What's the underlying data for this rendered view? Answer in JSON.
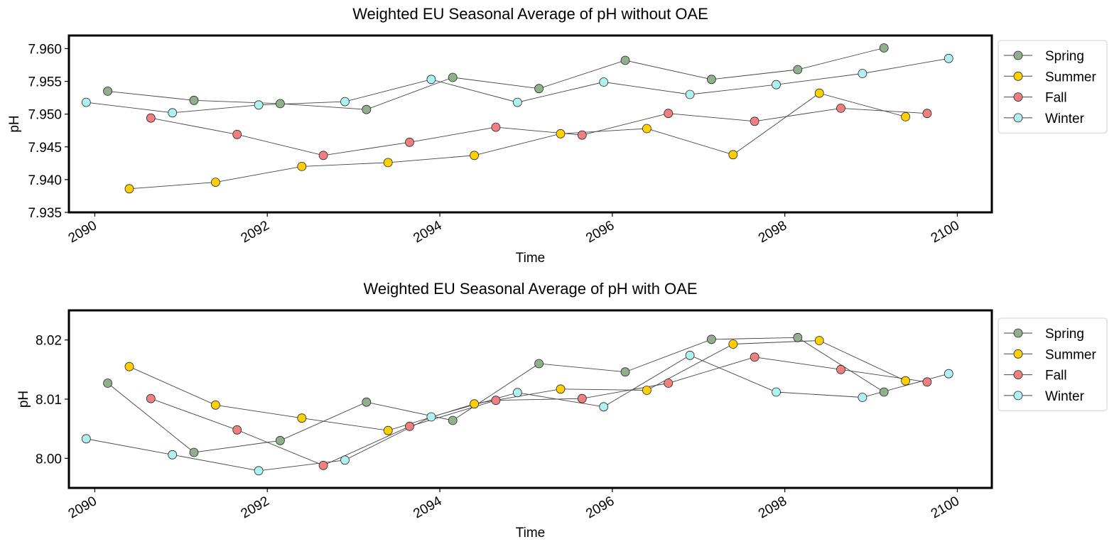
{
  "chart_data": [
    {
      "type": "line",
      "title": "Weighted EU Seasonal Average of pH without OAE",
      "xlabel": "Time",
      "ylabel": "pH",
      "xlim": [
        2089.7,
        2100.4
      ],
      "ylim": [
        7.935,
        7.962
      ],
      "x_ticks": [
        2090,
        2092,
        2094,
        2096,
        2098,
        2100
      ],
      "y_ticks": [
        7.935,
        7.94,
        7.945,
        7.95,
        7.955,
        7.96
      ],
      "y_tick_labels": [
        "7.935",
        "7.940",
        "7.945",
        "7.950",
        "7.955",
        "7.960"
      ],
      "legend": "outside-right-top",
      "series": [
        {
          "name": "Spring",
          "color": "#8fb08b",
          "x": [
            2090.15,
            2091.15,
            2092.15,
            2093.15,
            2094.15,
            2095.15,
            2096.15,
            2097.15,
            2098.15,
            2099.15
          ],
          "y": [
            7.9535,
            7.9521,
            7.9516,
            7.9507,
            7.9556,
            7.9539,
            7.9582,
            7.9553,
            7.9568,
            7.9601
          ]
        },
        {
          "name": "Summer",
          "color": "#ffd000",
          "x": [
            2090.4,
            2091.4,
            2092.4,
            2093.4,
            2094.4,
            2095.4,
            2096.4,
            2097.4,
            2098.4,
            2099.4
          ],
          "y": [
            7.9386,
            7.9396,
            7.942,
            7.9426,
            7.9437,
            7.947,
            7.9478,
            7.9438,
            7.9532,
            7.9496
          ]
        },
        {
          "name": "Fall",
          "color": "#f08080",
          "x": [
            2090.65,
            2091.65,
            2092.65,
            2093.65,
            2094.65,
            2095.65,
            2096.65,
            2097.65,
            2098.65,
            2099.65
          ],
          "y": [
            7.9494,
            7.9469,
            7.9437,
            7.9457,
            7.948,
            7.9468,
            7.9501,
            7.9489,
            7.9509,
            7.9501
          ]
        },
        {
          "name": "Winter",
          "color": "#aff0f0",
          "x": [
            2089.9,
            2090.9,
            2091.9,
            2092.9,
            2093.9,
            2094.9,
            2095.9,
            2096.9,
            2097.9,
            2098.9,
            2099.9
          ],
          "y": [
            7.9518,
            7.9502,
            7.9514,
            7.9519,
            7.9553,
            7.9518,
            7.9549,
            7.953,
            7.9545,
            7.9562,
            7.9585
          ]
        }
      ]
    },
    {
      "type": "line",
      "title": "Weighted EU Seasonal Average of pH with OAE",
      "xlabel": "Time",
      "ylabel": "pH",
      "xlim": [
        2089.7,
        2100.4
      ],
      "ylim": [
        7.995,
        8.025
      ],
      "x_ticks": [
        2090,
        2092,
        2094,
        2096,
        2098,
        2100
      ],
      "y_ticks": [
        8.0,
        8.01,
        8.02
      ],
      "y_tick_labels": [
        "8.00",
        "8.01",
        "8.02"
      ],
      "legend": "outside-right-top",
      "series": [
        {
          "name": "Spring",
          "color": "#8fb08b",
          "x": [
            2090.15,
            2091.15,
            2092.15,
            2093.15,
            2094.15,
            2095.15,
            2096.15,
            2097.15,
            2098.15,
            2099.15
          ],
          "y": [
            8.0127,
            8.001,
            8.003,
            8.0095,
            8.0064,
            8.016,
            8.0146,
            8.0201,
            8.0204,
            8.0112
          ]
        },
        {
          "name": "Summer",
          "color": "#ffd000",
          "x": [
            2090.4,
            2091.4,
            2092.4,
            2093.4,
            2094.4,
            2095.4,
            2096.4,
            2097.4,
            2098.4,
            2099.4
          ],
          "y": [
            8.0155,
            8.009,
            8.0068,
            8.0047,
            8.0092,
            8.0117,
            8.0115,
            8.0193,
            8.0199,
            8.0131
          ]
        },
        {
          "name": "Fall",
          "color": "#f08080",
          "x": [
            2090.65,
            2091.65,
            2092.65,
            2093.65,
            2094.65,
            2095.65,
            2096.65,
            2097.65,
            2098.65,
            2099.65
          ],
          "y": [
            8.0101,
            8.0048,
            7.9988,
            8.0054,
            8.0098,
            8.0101,
            8.0127,
            8.0171,
            8.015,
            8.0129
          ]
        },
        {
          "name": "Winter",
          "color": "#aff0f0",
          "x": [
            2089.9,
            2090.9,
            2091.9,
            2092.9,
            2093.9,
            2094.9,
            2095.9,
            2096.9,
            2097.9,
            2098.9,
            2099.9
          ],
          "y": [
            8.0033,
            8.0006,
            7.9979,
            7.9997,
            8.007,
            8.0111,
            8.0087,
            8.0174,
            8.0112,
            8.0103,
            8.0143
          ]
        }
      ]
    }
  ]
}
